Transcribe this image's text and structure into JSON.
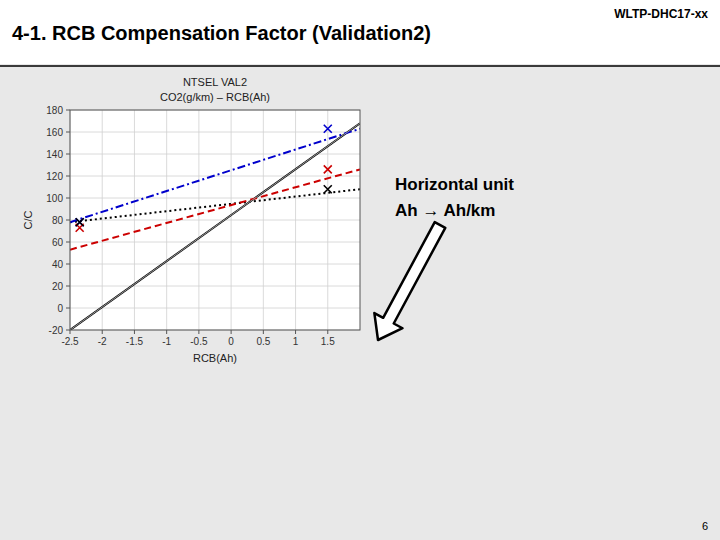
{
  "page": {
    "title": "4-1. RCB Compensation Factor (Validation2)",
    "header": "WLTP-DHC17-xx",
    "page_number": "6"
  },
  "chart_data": {
    "type": "line",
    "title": "NTSEL VAL2",
    "subtitle": "CO2(g/km) – RCB(Ah)",
    "x_label": "RCB(Ah)",
    "y_label": "C/C",
    "annotations": [
      "Horizontal unit",
      "Ah → Ah/km"
    ],
    "xlim": [
      -2.5,
      2.0
    ],
    "ylim": [
      -20,
      180
    ],
    "xticks": [
      -2.5,
      -2,
      -1.5,
      -1,
      -0.5,
      0,
      0.5,
      1,
      1.5
    ],
    "yticks": [
      -20,
      0,
      20,
      40,
      60,
      80,
      100,
      120,
      140,
      160,
      180
    ],
    "grid": true,
    "series": [
      {
        "color": "#000000",
        "line_style": "solid",
        "x": [
          -2.5,
          2.0
        ],
        "values": [
          -20,
          168
        ]
      },
      {
        "color": "#000000",
        "line_style": "dotted",
        "x": [
          -2.5,
          2.0
        ],
        "values": [
          78,
          108
        ]
      },
      {
        "color": "#0000cc",
        "line_style": "dashdot",
        "x": [
          -2.5,
          2.0
        ],
        "values": [
          78,
          163
        ]
      },
      {
        "color": "#cc0000",
        "line_style": "dashed",
        "x": [
          -2.5,
          2.0
        ],
        "values": [
          53,
          126
        ]
      },
      {
        "color": "#999999",
        "line_style": "solid",
        "x": [
          -2.5,
          2.0
        ],
        "values": [
          -20,
          168
        ]
      },
      {
        "type": "scatter",
        "marker": "x",
        "x": [
          -2.35,
          -2.35,
          -2.35,
          1.5,
          1.5,
          1.5
        ],
        "values": [
          78,
          73,
          78,
          108,
          126,
          163
        ],
        "colors": [
          "#0000cc",
          "#cc0000",
          "#000000",
          "#000000",
          "#cc0000",
          "#0000cc"
        ]
      }
    ]
  }
}
